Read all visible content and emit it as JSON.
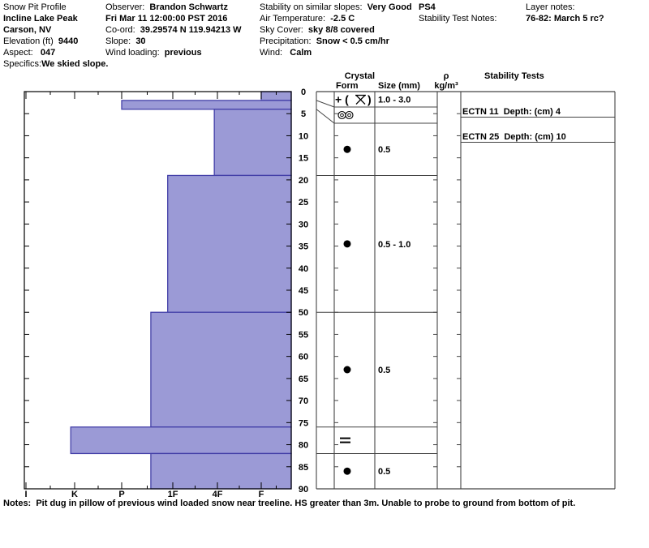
{
  "header": {
    "columns": [
      {
        "lines": [
          {
            "l": "Snow Pit Profile",
            "v": ""
          },
          {
            "l": "",
            "v": "Incline Lake Peak"
          },
          {
            "l": "",
            "v": "Carson, NV"
          },
          {
            "l": "Elevation (ft)  ",
            "v": "9440"
          },
          {
            "l": "Aspect:   ",
            "v": "047"
          },
          {
            "l": "Specifics:",
            "v": "We skied slope."
          }
        ]
      },
      {
        "lines": [
          {
            "l": "Observer:  ",
            "v": "Brandon Schwartz"
          },
          {
            "l": "",
            "v": "Fri Mar 11 12:00:00 PST 2016"
          },
          {
            "l": "Co-ord:  ",
            "v": "39.29574 N 119.94213 W"
          },
          {
            "l": "Slope:  ",
            "v": "30"
          },
          {
            "l": "Wind loading:  ",
            "v": "previous"
          }
        ]
      },
      {
        "lines": [
          {
            "l": "Stability on similar slopes:  ",
            "v": "Very Good"
          },
          {
            "l": "Air Temperature:  ",
            "v": "-2.5 C"
          },
          {
            "l": "Sky Cover:  ",
            "v": "sky 8/8 covered"
          },
          {
            "l": "Precipitation:  ",
            "v": "Snow < 0.5 cm/hr"
          },
          {
            "l": "Wind:   ",
            "v": "Calm"
          }
        ]
      },
      {
        "lines": [
          {
            "l": "",
            "v": "PS4"
          },
          {
            "l": "Stability Test Notes:",
            "v": ""
          }
        ]
      },
      {
        "lines": [
          {
            "l": "Layer notes:",
            "v": ""
          },
          {
            "l": "",
            "v": "76-82: March 5 rc?"
          }
        ]
      }
    ]
  },
  "notes": {
    "label": "Notes:  ",
    "text": "Pit dug in pillow of previous wind loaded snow near treeline. HS greater than 3m. Unable to probe to ground from bottom of pit."
  },
  "chart_data": {
    "type": "bar",
    "title": "Snow pit hardness profile",
    "orientation": "horizontal-bars-by-depth",
    "hardness_labels": [
      "I",
      "K",
      "P",
      "1F",
      "4F",
      "F"
    ],
    "depth_axis": {
      "min": 0,
      "max": 90,
      "step": 5,
      "unit": "cm"
    },
    "column_headers": {
      "crystal": "Crystal",
      "form": "Form",
      "size": "Size (mm)",
      "rho": "ρ",
      "rho_unit": "kg/m³",
      "stability": "Stability Tests"
    },
    "layers": [
      {
        "top_cm": 0,
        "bottom_cm": 2,
        "hardness": "F",
        "hardness_pos": 5.0,
        "form": "precipitation-stellar",
        "form_text": "+ (✶)",
        "size_mm": "1.0 - 3.0"
      },
      {
        "top_cm": 2,
        "bottom_cm": 4,
        "hardness": "P",
        "hardness_pos": 2.0,
        "form": "melt-freeze-crust",
        "form_text": "◎◎",
        "size_mm": ""
      },
      {
        "top_cm": 4,
        "bottom_cm": 19,
        "hardness": "4F",
        "hardness_pos": 3.93,
        "form": "rounded-grains",
        "form_text": "●",
        "size_mm": "0.5"
      },
      {
        "top_cm": 19,
        "bottom_cm": 50,
        "hardness": "1F",
        "hardness_pos": 2.9,
        "form": "rounded-grains",
        "form_text": "●",
        "size_mm": "0.5 - 1.0"
      },
      {
        "top_cm": 50,
        "bottom_cm": 76,
        "hardness": "P-1F",
        "hardness_pos": 2.57,
        "form": "rounded-grains",
        "form_text": "●",
        "size_mm": "0.5"
      },
      {
        "top_cm": 76,
        "bottom_cm": 82,
        "hardness": "K",
        "hardness_pos": 0.92,
        "form": "ice-layer",
        "form_text": "=",
        "size_mm": ""
      },
      {
        "top_cm": 82,
        "bottom_cm": 90,
        "hardness": "P-1F",
        "hardness_pos": 2.57,
        "form": "rounded-grains",
        "form_text": "●",
        "size_mm": "0.5"
      }
    ],
    "stability_tests": [
      {
        "name": "ECTN 11",
        "depth": "Depth: (cm) 4"
      },
      {
        "name": "ECTN 25",
        "depth": "Depth: (cm) 10"
      }
    ],
    "colors": {
      "bar_fill": "#9b9ad6",
      "bar_border": "#4440a8",
      "panel_line": "#444444",
      "plot_line": "#000000"
    }
  }
}
